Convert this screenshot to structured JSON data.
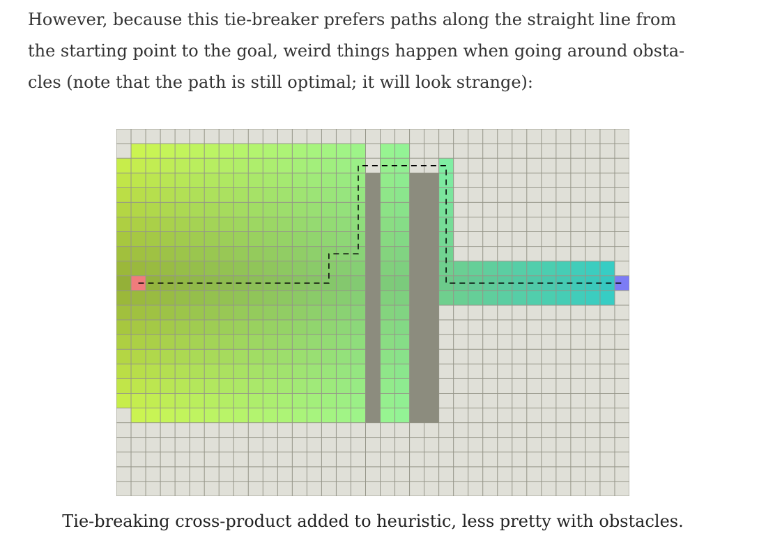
{
  "article": {
    "lines": [
      "However, because this tie-breaker prefers paths along the straight line from",
      "the starting point to the goal, weird things happen when going around obsta-",
      "cles (note that the path is still optimal; it will look strange):"
    ],
    "caption": "Tie-breaking cross-product added to heuristic, less pretty with obstacles."
  },
  "grid": {
    "cols": 35,
    "rows": 25,
    "colors": {
      "empty": "#e0e0d8",
      "wall": "#8c8c7e",
      "grid_line": "#959588",
      "start": "#f07c7c",
      "goal": "#7c7cf5",
      "path": "#000000"
    },
    "start": [
      1,
      10
    ],
    "goal": [
      34,
      10
    ],
    "walls": [
      {
        "col": 17,
        "row_from": 3,
        "row_to": 19
      },
      {
        "col": 20,
        "row_from": 3,
        "row_to": 19
      },
      {
        "col": 21,
        "row_from": 3,
        "row_to": 19
      }
    ],
    "explored_right_band": {
      "col_from": 22,
      "col_to": 33,
      "row_from": 9,
      "row_to": 11
    },
    "path": [
      [
        1,
        10
      ],
      [
        14,
        10
      ],
      [
        14,
        8
      ],
      [
        16,
        8
      ],
      [
        16,
        2
      ],
      [
        22,
        2
      ],
      [
        22,
        10
      ],
      [
        34,
        10
      ]
    ]
  }
}
